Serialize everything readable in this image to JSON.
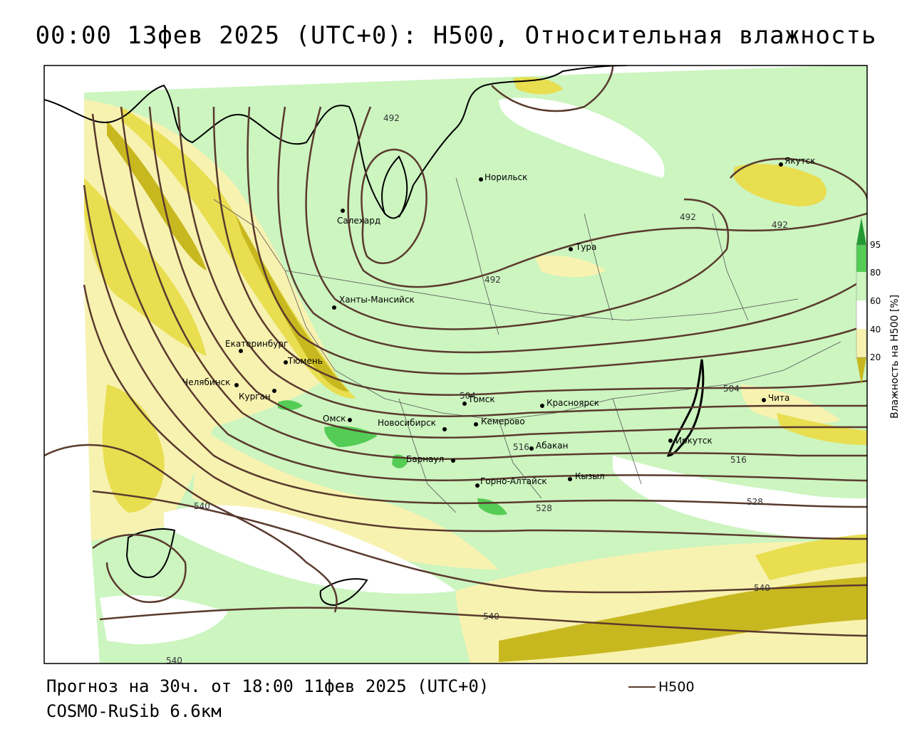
{
  "title": "00:00 13фев 2025 (UTC+0): H500, Относительная влажность",
  "footer": {
    "forecast": "Прогноз на 30ч. от 18:00 11фев 2025 (UTC+0)",
    "model": "COSMO-RuSib 6.6км"
  },
  "legend": {
    "line_label": "H500",
    "line_color": "#5a3a2e"
  },
  "colorbar": {
    "title": "Влажность на H500 [%]",
    "ticks": [
      "95",
      "80",
      "60",
      "40",
      "20"
    ],
    "colors": {
      "dry_dark": "#c8b820",
      "dry": "#e8de50",
      "dry_light": "#f8f2b0",
      "neutral": "#ffffff",
      "moist_light": "#ccf5c0",
      "moist": "#55cc55",
      "moist_dark": "#229933"
    }
  },
  "cities": [
    {
      "name": "Норильск"
    },
    {
      "name": "Якутск"
    },
    {
      "name": "Салехард"
    },
    {
      "name": "Тура"
    },
    {
      "name": "Ханты-Мансийск"
    },
    {
      "name": "Екатеринбург"
    },
    {
      "name": "Тюмень"
    },
    {
      "name": "Челябинск"
    },
    {
      "name": "Курган"
    },
    {
      "name": "Омск"
    },
    {
      "name": "Новосибирск"
    },
    {
      "name": "Томск"
    },
    {
      "name": "Кемерово"
    },
    {
      "name": "Красноярск"
    },
    {
      "name": "Барнаул"
    },
    {
      "name": "Абакан"
    },
    {
      "name": "Горно-Алтайск"
    },
    {
      "name": "Кызыл"
    },
    {
      "name": "Иркутск"
    },
    {
      "name": "Чита"
    }
  ],
  "isolines": [
    {
      "value": "492"
    },
    {
      "value": "492"
    },
    {
      "value": "492"
    },
    {
      "value": "492"
    },
    {
      "value": "504"
    },
    {
      "value": "504"
    },
    {
      "value": "516"
    },
    {
      "value": "516"
    },
    {
      "value": "528"
    },
    {
      "value": "528"
    },
    {
      "value": "540"
    },
    {
      "value": "540"
    },
    {
      "value": "540"
    },
    {
      "value": "540"
    }
  ]
}
